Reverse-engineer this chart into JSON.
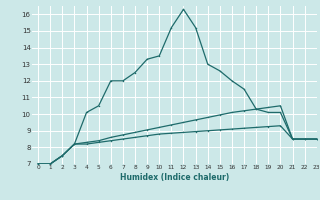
{
  "xlabel": "Humidex (Indice chaleur)",
  "bg_color": "#cce8e8",
  "grid_color": "#ffffff",
  "line_color": "#1e6b6b",
  "xlim": [
    -0.5,
    23
  ],
  "ylim": [
    7,
    16.5
  ],
  "xticks": [
    0,
    1,
    2,
    3,
    4,
    5,
    6,
    7,
    8,
    9,
    10,
    11,
    12,
    13,
    14,
    15,
    16,
    17,
    18,
    19,
    20,
    21,
    22,
    23
  ],
  "yticks": [
    7,
    8,
    9,
    10,
    11,
    12,
    13,
    14,
    15,
    16
  ],
  "series1_x": [
    0,
    1,
    2,
    3,
    4,
    5,
    6,
    7,
    8,
    9,
    10,
    11,
    12,
    13,
    14,
    15,
    16,
    17,
    18,
    19,
    20,
    21,
    22,
    23
  ],
  "series1_y": [
    7.0,
    7.0,
    7.5,
    8.2,
    8.2,
    8.3,
    8.4,
    8.5,
    8.6,
    8.7,
    8.8,
    8.85,
    8.9,
    8.95,
    9.0,
    9.05,
    9.1,
    9.15,
    9.2,
    9.25,
    9.3,
    8.5,
    8.5,
    8.5
  ],
  "series2_x": [
    0,
    1,
    2,
    3,
    4,
    5,
    6,
    7,
    8,
    9,
    10,
    11,
    12,
    13,
    14,
    15,
    16,
    17,
    18,
    19,
    20,
    21,
    22,
    23
  ],
  "series2_y": [
    7.0,
    7.0,
    7.5,
    8.2,
    8.3,
    8.4,
    8.6,
    8.75,
    8.9,
    9.05,
    9.2,
    9.35,
    9.5,
    9.65,
    9.8,
    9.95,
    10.1,
    10.2,
    10.3,
    10.4,
    10.5,
    8.5,
    8.5,
    8.5
  ],
  "series3_x": [
    0,
    1,
    2,
    3,
    4,
    5,
    6,
    7,
    8,
    9,
    10,
    11,
    12,
    13,
    14,
    15,
    16,
    17,
    18,
    19,
    20,
    21,
    22,
    23
  ],
  "series3_y": [
    7.0,
    7.0,
    7.5,
    8.2,
    10.1,
    10.5,
    12.0,
    12.0,
    12.5,
    13.3,
    13.5,
    15.2,
    16.3,
    15.2,
    13.0,
    12.6,
    12.0,
    11.5,
    10.3,
    10.1,
    10.1,
    8.5,
    8.5,
    8.5
  ]
}
